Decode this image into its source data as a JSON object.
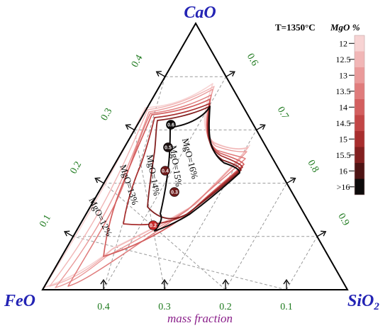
{
  "chart_data": {
    "type": "ternary",
    "title": "",
    "vertices": {
      "top": "CaO",
      "left": "FeO",
      "right_main": "SiO",
      "right_sub": "2"
    },
    "axis_label": "mass fraction",
    "ticks": {
      "bottom": [
        "0.4",
        "0.3",
        "0.2",
        "0.1"
      ],
      "left": [
        "0.1",
        "0.2",
        "0.3",
        "0.4"
      ],
      "right": [
        "0.6",
        "0.7",
        "0.8",
        "0.9"
      ]
    },
    "legend": {
      "temperature": "T=1350°C",
      "title": "MgO %",
      "entries": [
        {
          "label": "12",
          "color": "#f7d3d3"
        },
        {
          "label": "12.5",
          "color": "#f1b6b6"
        },
        {
          "label": "13",
          "color": "#ea9a9a"
        },
        {
          "label": "13.5",
          "color": "#e07c7c"
        },
        {
          "label": "14",
          "color": "#d35f5f"
        },
        {
          "label": "14.5",
          "color": "#c24646"
        },
        {
          "label": "15",
          "color": "#a82e2e"
        },
        {
          "label": "15.5",
          "color": "#832020"
        },
        {
          "label": "16",
          "color": "#4e1414"
        },
        {
          "label": ">16",
          "color": "#0d0a0a"
        }
      ]
    },
    "iso_labels": [
      {
        "text": "MgO=12%",
        "color": "#e07c7c"
      },
      {
        "text": "MgO=13%",
        "color": "#c24646"
      },
      {
        "text": "MgO=14%",
        "color": "#832020"
      },
      {
        "text": "MgO=15%",
        "color": "#4e1414"
      },
      {
        "text": "MgO=16%",
        "color": "#0d0a0a"
      }
    ],
    "basicity_markers": [
      {
        "label": "0.6",
        "color": "#0d0a0a"
      },
      {
        "label": "0.5",
        "color": "#1a0f0f"
      },
      {
        "label": "0.4",
        "color": "#6e1a1a"
      },
      {
        "label": "0.3",
        "color": "#6e1a1a"
      },
      {
        "label": "0.2",
        "color": "#c62828"
      }
    ]
  }
}
